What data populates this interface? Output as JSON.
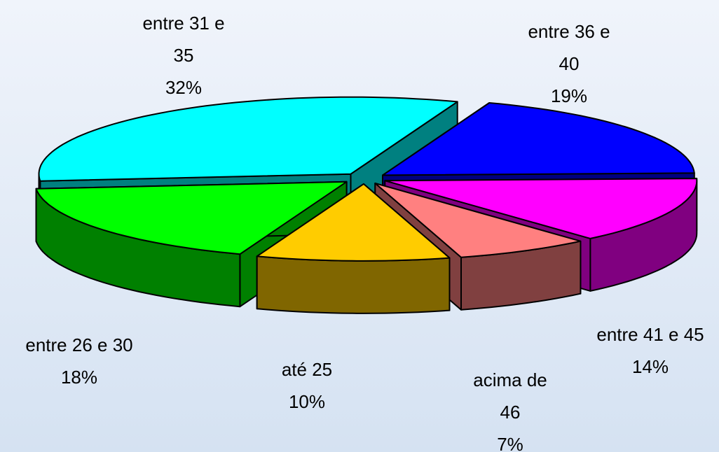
{
  "chart_data": {
    "type": "pie",
    "categories": [
      "entre 36 e 40",
      "entre 41 e 45",
      "acima de 46",
      "até 25",
      "entre 26 e 30",
      "entre 31 e 35"
    ],
    "values": [
      19,
      14,
      7,
      10,
      18,
      32
    ],
    "value_labels": [
      "19%",
      "14%",
      "7%",
      "10%",
      "18%",
      "32%"
    ],
    "colors": [
      "#0000ff",
      "#ff00ff",
      "#ff8080",
      "#ffcc00",
      "#00ff00",
      "#00ffff"
    ]
  }
}
